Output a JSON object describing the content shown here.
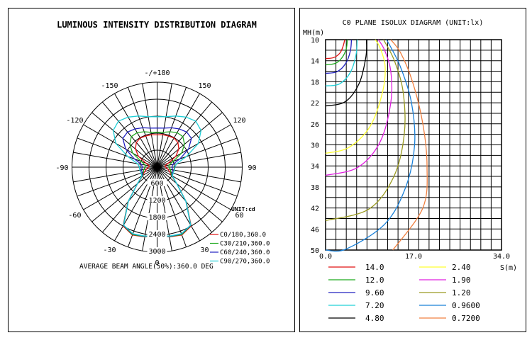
{
  "chart_data": [
    {
      "type": "polar",
      "title": "LUMINOUS INTENSITY DISTRIBUTION DIAGRAM",
      "angle_labels": [
        "-/+180",
        "150",
        "120",
        "90",
        "60",
        "30",
        "0",
        "-30",
        "-60",
        "-90",
        "-120",
        "-150"
      ],
      "radial_labels": [
        "600",
        "1200",
        "1800",
        "2400",
        "3000"
      ],
      "radial_max": 3000,
      "unit_label": "UNIT:cd",
      "legend_placement": "bottom-right",
      "series": [
        {
          "name": "C0/180,360.0",
          "color": "#e01010",
          "values": [
            [
              0,
              2400
            ],
            [
              10,
              2500
            ],
            [
              20,
              2550
            ],
            [
              30,
              2400
            ],
            [
              40,
              1600
            ],
            [
              50,
              900
            ],
            [
              60,
              580
            ],
            [
              70,
              470
            ],
            [
              80,
              380
            ],
            [
              90,
              300
            ],
            [
              100,
              280
            ],
            [
              110,
              420
            ],
            [
              120,
              760
            ],
            [
              130,
              1000
            ],
            [
              140,
              1140
            ],
            [
              150,
              1190
            ],
            [
              160,
              1170
            ],
            [
              170,
              1160
            ],
            [
              180,
              1140
            ]
          ]
        },
        {
          "name": "C30/210,360.0",
          "color": "#1faa1f",
          "values": [
            [
              0,
              2400
            ],
            [
              10,
              2490
            ],
            [
              20,
              2530
            ],
            [
              30,
              2380
            ],
            [
              40,
              1590
            ],
            [
              50,
              900
            ],
            [
              60,
              590
            ],
            [
              70,
              520
            ],
            [
              80,
              480
            ],
            [
              90,
              420
            ],
            [
              100,
              420
            ],
            [
              110,
              600
            ],
            [
              120,
              1000
            ],
            [
              130,
              1260
            ],
            [
              140,
              1410
            ],
            [
              150,
              1410
            ],
            [
              160,
              1330
            ],
            [
              170,
              1250
            ],
            [
              180,
              1230
            ]
          ]
        },
        {
          "name": "C60/240,360.0",
          "color": "#2020c0",
          "values": [
            [
              0,
              2400
            ],
            [
              10,
              2480
            ],
            [
              20,
              2510
            ],
            [
              30,
              2370
            ],
            [
              40,
              1580
            ],
            [
              50,
              900
            ],
            [
              60,
              610
            ],
            [
              70,
              560
            ],
            [
              80,
              560
            ],
            [
              90,
              520
            ],
            [
              100,
              560
            ],
            [
              110,
              860
            ],
            [
              120,
              1280
            ],
            [
              130,
              1580
            ],
            [
              140,
              1620
            ],
            [
              150,
              1560
            ],
            [
              160,
              1480
            ],
            [
              170,
              1400
            ],
            [
              180,
              1380
            ]
          ]
        },
        {
          "name": "C90/270,360.0",
          "color": "#20d0d8",
          "values": [
            [
              0,
              2400
            ],
            [
              10,
              2470
            ],
            [
              20,
              2500
            ],
            [
              30,
              2360
            ],
            [
              40,
              1580
            ],
            [
              50,
              900
            ],
            [
              60,
              620
            ],
            [
              70,
              600
            ],
            [
              80,
              620
            ],
            [
              90,
              620
            ],
            [
              100,
              700
            ],
            [
              110,
              1100
            ],
            [
              120,
              1680
            ],
            [
              130,
              2020
            ],
            [
              140,
              2120
            ],
            [
              150,
              2040
            ],
            [
              160,
              1920
            ],
            [
              170,
              1810
            ],
            [
              180,
              1780
            ]
          ]
        }
      ],
      "footer": "AVERAGE BEAM ANGLE(50%):360.0 DEG"
    },
    {
      "type": "line",
      "title": "C0 PLANE ISOLUX DIAGRAM (UNIT:lx)",
      "ylabel": "MH(m)",
      "xlabel": "S(m)",
      "xlim": [
        0,
        34
      ],
      "ylim": [
        10,
        50
      ],
      "y_inverted": true,
      "x_tick_labels": [
        "0.0",
        "17.0",
        "34.0"
      ],
      "y_tick_labels": [
        "10",
        "14",
        "18",
        "22",
        "26",
        "30",
        "34",
        "38",
        "42",
        "46",
        "50"
      ],
      "grid": true,
      "legend_placement": "bottom",
      "series": [
        {
          "name": "14.0",
          "color": "#e01010",
          "points": [
            [
              0,
              13.6
            ],
            [
              1.6,
              13.4
            ],
            [
              2.8,
              12.5
            ],
            [
              3.4,
              11.2
            ],
            [
              3.7,
              10
            ]
          ]
        },
        {
          "name": "12.0",
          "color": "#1faa1f",
          "points": [
            [
              0,
              14.8
            ],
            [
              1.9,
              14.5
            ],
            [
              3.2,
              13.4
            ],
            [
              4.0,
              11.7
            ],
            [
              4.2,
              10
            ]
          ]
        },
        {
          "name": "9.60",
          "color": "#2020c0",
          "points": [
            [
              0,
              16.4
            ],
            [
              2.2,
              16.1
            ],
            [
              3.9,
              14.5
            ],
            [
              4.8,
              12.1
            ],
            [
              5.0,
              10
            ]
          ]
        },
        {
          "name": "7.20",
          "color": "#20d0d8",
          "points": [
            [
              0,
              18.8
            ],
            [
              2.7,
              18.4
            ],
            [
              4.8,
              16.2
            ],
            [
              5.9,
              12.8
            ],
            [
              6.1,
              10
            ]
          ]
        },
        {
          "name": "4.80",
          "color": "#000000",
          "points": [
            [
              0,
              22.6
            ],
            [
              3.8,
              21.8
            ],
            [
              6.5,
              18.3
            ],
            [
              7.8,
              13.2
            ],
            [
              7.9,
              10
            ]
          ]
        },
        {
          "name": "2.40",
          "color": "#ffff30",
          "points": [
            [
              0,
              31.6
            ],
            [
              4.5,
              30.5
            ],
            [
              8.6,
              26.5
            ],
            [
              11.0,
              20.0
            ],
            [
              11.5,
              15.0
            ],
            [
              10.5,
              11.5
            ],
            [
              9.6,
              10
            ]
          ]
        },
        {
          "name": "1.90",
          "color": "#e020e0",
          "points": [
            [
              0,
              35.8
            ],
            [
              6.2,
              34.3
            ],
            [
              10.5,
              29.5
            ],
            [
              12.6,
              22.0
            ],
            [
              12.6,
              16.0
            ],
            [
              11.4,
              12.0
            ],
            [
              10.2,
              10
            ]
          ]
        },
        {
          "name": "1.20",
          "color": "#9a9a20",
          "points": [
            [
              0,
              44.4
            ],
            [
              8.4,
              42.2
            ],
            [
              13.2,
              36.0
            ],
            [
              15.2,
              28.0
            ],
            [
              15.0,
              20.0
            ],
            [
              13.3,
              14.0
            ],
            [
              11.2,
              10
            ]
          ]
        },
        {
          "name": "0.9600",
          "color": "#1a80d8",
          "points": [
            [
              0,
              50
            ],
            [
              4.0,
              49.8
            ],
            [
              11.5,
              45.0
            ],
            [
              15.5,
              38.0
            ],
            [
              17.2,
              30.0
            ],
            [
              16.6,
              22.0
            ],
            [
              14.4,
              15.0
            ],
            [
              11.8,
              10
            ]
          ]
        },
        {
          "name": "0.7200",
          "color": "#f08040",
          "points": [
            [
              13.0,
              50
            ],
            [
              18.8,
              42.0
            ],
            [
              19.6,
              34.0
            ],
            [
              18.8,
              26.0
            ],
            [
              16.8,
              18.0
            ],
            [
              14.5,
              12.5
            ],
            [
              12.6,
              10
            ]
          ]
        }
      ]
    }
  ]
}
